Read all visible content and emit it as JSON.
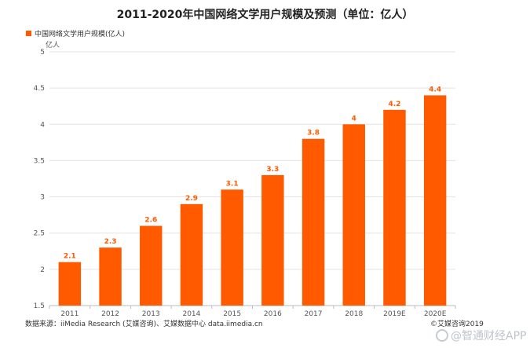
{
  "chart_data": {
    "type": "bar",
    "title": "2011-2020年中国网络文学用户规模及预测（单位：亿人）",
    "legend": "中国网络文学用户规模(亿人)",
    "ylabel": "亿人",
    "xlabel": "",
    "categories": [
      "2011",
      "2012",
      "2013",
      "2014",
      "2015",
      "2016",
      "2017",
      "2018",
      "2019E",
      "2020E"
    ],
    "values": [
      2.1,
      2.3,
      2.6,
      2.9,
      3.1,
      3.3,
      3.8,
      4,
      4.2,
      4.4
    ],
    "data_labels": [
      "2.1",
      "2.3",
      "2.6",
      "2.9",
      "3.1",
      "3.3",
      "3.8",
      "4",
      "4.2",
      "4.4"
    ],
    "ylim": [
      1.5,
      5
    ],
    "yticks": [
      1.5,
      2,
      2.5,
      3,
      3.5,
      4,
      4.5,
      5
    ],
    "ytick_labels": [
      "1.5",
      "2",
      "2.5",
      "3",
      "3.5",
      "4",
      "4.5",
      "5"
    ],
    "grid": true,
    "bar_color": "#FF5A00",
    "label_color": "#FF5A00"
  },
  "footer": {
    "source": "数据来源：iiMedia Research (艾媒咨询)、艾媒数据中心 data.iimedia.cn",
    "copyright": "©艾媒咨询2019"
  },
  "watermark": {
    "text": "@智通财经APP"
  }
}
